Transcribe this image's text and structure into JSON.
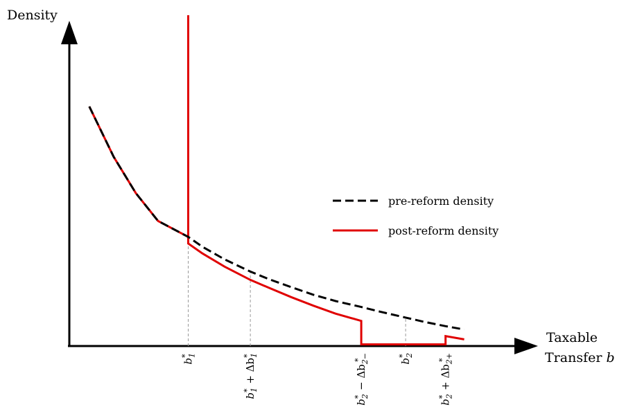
{
  "chart_data": {
    "type": "line",
    "ylabel": "Density",
    "xlabel_line1": "Taxable",
    "xlabel_line2": "Transfer",
    "xlabel_symbol": "b",
    "axis_ticks_shown": false,
    "xlim": [
      0,
      10
    ],
    "ylim": [
      0,
      10
    ],
    "legend": {
      "placement": "center-right",
      "entries": [
        {
          "name": "pre-reform density",
          "style": "dashed",
          "color": "#000000"
        },
        {
          "name": "post-reform density",
          "style": "solid",
          "color": "#e00000"
        }
      ]
    },
    "annotations": [
      {
        "key": "b1",
        "x": 2.68,
        "base": "b",
        "sub": "1",
        "sup": "*",
        "suffix": ""
      },
      {
        "key": "b1p",
        "x": 4.08,
        "base": "b",
        "sub": "1",
        "sup": "*",
        "suffix": "+ Δb",
        "suffix_sub": "1",
        "suffix_sup": "*"
      },
      {
        "key": "b2m",
        "x": 6.58,
        "base": "b",
        "sub": "2",
        "sup": "*",
        "suffix": "− Δb",
        "suffix_sub": "2−",
        "suffix_sup": "*"
      },
      {
        "key": "b2",
        "x": 7.58,
        "base": "b",
        "sub": "2",
        "sup": "*",
        "suffix": ""
      },
      {
        "key": "b2p",
        "x": 8.48,
        "base": "b",
        "sub": "2",
        "sup": "*",
        "suffix": "+ Δb",
        "suffix_sub": "2+",
        "suffix_sup": "*"
      }
    ],
    "series": [
      {
        "name": "pre-reform density",
        "x": [
          0.45,
          1.0,
          1.5,
          2.0,
          2.68,
          3.0,
          3.5,
          4.08,
          4.5,
          5.0,
          5.5,
          6.0,
          6.58,
          7.0,
          7.58,
          8.0,
          8.48,
          8.9
        ],
        "y": [
          7.24,
          5.72,
          4.62,
          3.78,
          3.3,
          3.0,
          2.62,
          2.25,
          2.02,
          1.78,
          1.55,
          1.36,
          1.18,
          1.04,
          0.86,
          0.73,
          0.6,
          0.5
        ]
      },
      {
        "name": "post-reform density",
        "x": [
          0.45,
          1.0,
          1.5,
          2.0,
          2.68,
          2.68,
          2.68,
          3.0,
          3.5,
          4.08,
          4.5,
          5.0,
          5.5,
          6.0,
          6.58,
          6.58,
          7.58,
          8.48,
          8.48,
          8.9
        ],
        "y": [
          7.24,
          5.72,
          4.62,
          3.78,
          3.3,
          10.0,
          3.1,
          2.8,
          2.4,
          2.0,
          1.76,
          1.48,
          1.22,
          0.98,
          0.76,
          0.05,
          0.05,
          0.05,
          0.3,
          0.2
        ]
      }
    ]
  }
}
